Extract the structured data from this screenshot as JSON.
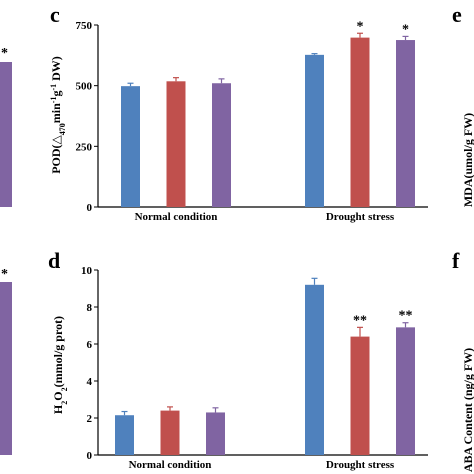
{
  "chart_data": [
    {
      "panel": "c",
      "type": "bar",
      "ylabel": "POD(△470min⁻¹g⁻¹ DW)",
      "ylabel_parts": [
        "POD(",
        "△",
        "470",
        "min",
        "-1",
        "g",
        "-1",
        " DW)"
      ],
      "ylim": [
        0,
        750
      ],
      "yticks": [
        0,
        250,
        500,
        750
      ],
      "categories": [
        "Normal condition",
        "Drought stress"
      ],
      "series": [
        {
          "color": "#4f81bd",
          "values": [
            498,
            627
          ],
          "errors": [
            12,
            5
          ]
        },
        {
          "color": "#c0504d",
          "values": [
            518,
            698
          ],
          "errors": [
            15,
            18
          ]
        },
        {
          "color": "#8064a2",
          "values": [
            510,
            688
          ],
          "errors": [
            18,
            15
          ]
        }
      ],
      "annotations": [
        [
          "",
          ""
        ],
        [
          "",
          "*"
        ],
        [
          "",
          "*"
        ]
      ]
    },
    {
      "panel": "d",
      "type": "bar",
      "ylabel": "H₂O₂(mmol/g prot)",
      "ylabel_parts": [
        "H",
        "2",
        "O",
        "2",
        "(mmol/g prot)"
      ],
      "ylim": [
        0,
        10
      ],
      "yticks": [
        0,
        2,
        4,
        6,
        8,
        10
      ],
      "categories": [
        "Normal condition",
        "Drought stress"
      ],
      "series": [
        {
          "color": "#4f81bd",
          "values": [
            2.15,
            9.2
          ],
          "errors": [
            0.2,
            0.35
          ]
        },
        {
          "color": "#c0504d",
          "values": [
            2.4,
            6.4
          ],
          "errors": [
            0.2,
            0.5
          ]
        },
        {
          "color": "#8064a2",
          "values": [
            2.3,
            6.9
          ],
          "errors": [
            0.25,
            0.25
          ]
        }
      ],
      "annotations": [
        [
          "",
          ""
        ],
        [
          "",
          "**"
        ],
        [
          "",
          "**"
        ]
      ]
    }
  ],
  "side_panels": {
    "left_top": {
      "bar_color": "#8064a2",
      "annotation": "*"
    },
    "left_bottom": {
      "bar_color": "#8064a2",
      "annotation": "*"
    },
    "right_top": {
      "letter": "e",
      "ylabel": "MDA(umol/g FW)"
    },
    "right_bottom": {
      "letter": "f",
      "ylabel": "ABA Content (ng/g FW)"
    }
  }
}
